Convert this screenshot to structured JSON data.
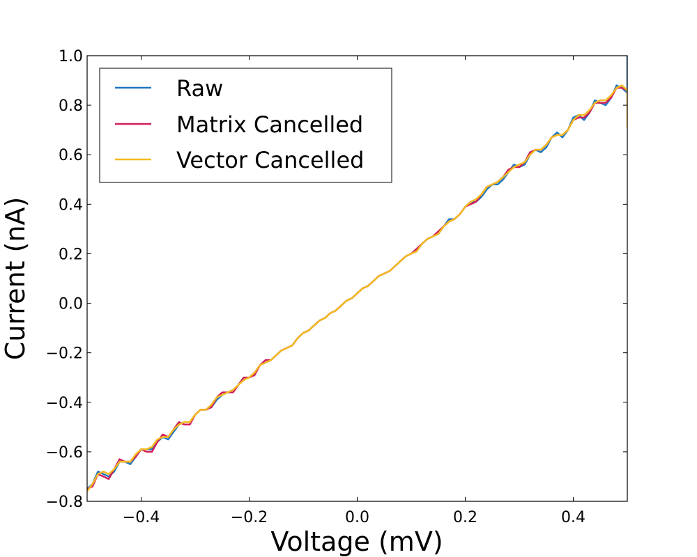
{
  "chart_data": {
    "type": "line",
    "xlabel": "Voltage (mV)",
    "ylabel": "Current (nA)",
    "xlim": [
      -0.5,
      0.5
    ],
    "ylim": [
      -0.8,
      1.0
    ],
    "x_ticks": [
      -0.4,
      -0.2,
      0.0,
      0.2,
      0.4
    ],
    "x_tick_labels": [
      "−0.4",
      "−0.2",
      "0.0",
      "0.2",
      "0.4"
    ],
    "y_ticks": [
      -0.8,
      -0.6,
      -0.4,
      -0.2,
      0.0,
      0.2,
      0.4,
      0.6,
      0.8,
      1.0
    ],
    "y_tick_labels": [
      "−0.8",
      "−0.6",
      "−0.4",
      "−0.2",
      "0.0",
      "0.2",
      "0.4",
      "0.6",
      "0.8",
      "1.0"
    ],
    "grid": false,
    "legend_position": "top-left",
    "series": [
      {
        "name": "Raw",
        "color": "#1f77c4",
        "x": [
          -0.5,
          -0.49,
          -0.48,
          -0.47,
          -0.46,
          -0.45,
          -0.44,
          -0.43,
          -0.42,
          -0.41,
          -0.4,
          -0.39,
          -0.38,
          -0.37,
          -0.36,
          -0.35,
          -0.34,
          -0.33,
          -0.32,
          -0.31,
          -0.3,
          -0.29,
          -0.28,
          -0.27,
          -0.26,
          -0.25,
          -0.24,
          -0.23,
          -0.22,
          -0.21,
          -0.2,
          -0.19,
          -0.18,
          -0.17,
          -0.16,
          -0.15,
          -0.14,
          -0.13,
          -0.12,
          -0.11,
          -0.1,
          -0.09,
          -0.08,
          -0.07,
          -0.06,
          -0.05,
          -0.04,
          -0.03,
          -0.02,
          -0.01,
          0.0,
          0.01,
          0.02,
          0.03,
          0.04,
          0.05,
          0.06,
          0.07,
          0.08,
          0.09,
          0.1,
          0.11,
          0.12,
          0.13,
          0.14,
          0.15,
          0.16,
          0.17,
          0.18,
          0.19,
          0.2,
          0.21,
          0.22,
          0.23,
          0.24,
          0.25,
          0.26,
          0.27,
          0.28,
          0.29,
          0.3,
          0.31,
          0.32,
          0.33,
          0.34,
          0.35,
          0.36,
          0.37,
          0.38,
          0.39,
          0.4,
          0.41,
          0.42,
          0.43,
          0.44,
          0.45,
          0.46,
          0.47,
          0.48,
          0.49,
          0.5,
          0.5
        ],
        "y": [
          -0.75,
          -0.73,
          -0.68,
          -0.69,
          -0.7,
          -0.68,
          -0.64,
          -0.64,
          -0.65,
          -0.62,
          -0.59,
          -0.59,
          -0.59,
          -0.56,
          -0.54,
          -0.55,
          -0.52,
          -0.49,
          -0.48,
          -0.48,
          -0.45,
          -0.43,
          -0.43,
          -0.42,
          -0.39,
          -0.37,
          -0.36,
          -0.35,
          -0.33,
          -0.3,
          -0.3,
          -0.28,
          -0.25,
          -0.24,
          -0.23,
          -0.21,
          -0.19,
          -0.18,
          -0.17,
          -0.14,
          -0.12,
          -0.11,
          -0.09,
          -0.07,
          -0.06,
          -0.04,
          -0.03,
          -0.01,
          0.01,
          0.02,
          0.04,
          0.06,
          0.07,
          0.09,
          0.11,
          0.12,
          0.13,
          0.15,
          0.17,
          0.19,
          0.2,
          0.21,
          0.24,
          0.26,
          0.27,
          0.28,
          0.31,
          0.34,
          0.34,
          0.36,
          0.39,
          0.41,
          0.41,
          0.43,
          0.46,
          0.48,
          0.48,
          0.5,
          0.53,
          0.56,
          0.55,
          0.56,
          0.6,
          0.62,
          0.61,
          0.63,
          0.67,
          0.69,
          0.67,
          0.7,
          0.75,
          0.76,
          0.74,
          0.77,
          0.82,
          0.81,
          0.8,
          0.83,
          0.88,
          0.87,
          0.85,
          1.0
        ]
      },
      {
        "name": "Matrix Cancelled",
        "color": "#d11f5c",
        "x": [
          -0.5,
          -0.49,
          -0.48,
          -0.47,
          -0.46,
          -0.45,
          -0.44,
          -0.43,
          -0.42,
          -0.41,
          -0.4,
          -0.39,
          -0.38,
          -0.37,
          -0.36,
          -0.35,
          -0.34,
          -0.33,
          -0.32,
          -0.31,
          -0.3,
          -0.29,
          -0.28,
          -0.27,
          -0.26,
          -0.25,
          -0.24,
          -0.23,
          -0.22,
          -0.21,
          -0.2,
          -0.19,
          -0.18,
          -0.17,
          -0.16,
          -0.15,
          -0.14,
          -0.13,
          -0.12,
          -0.11,
          -0.1,
          -0.09,
          -0.08,
          -0.07,
          -0.06,
          -0.05,
          -0.04,
          -0.03,
          -0.02,
          -0.01,
          0.0,
          0.01,
          0.02,
          0.03,
          0.04,
          0.05,
          0.06,
          0.07,
          0.08,
          0.09,
          0.1,
          0.11,
          0.12,
          0.13,
          0.14,
          0.15,
          0.16,
          0.17,
          0.18,
          0.19,
          0.2,
          0.21,
          0.22,
          0.23,
          0.24,
          0.25,
          0.26,
          0.27,
          0.28,
          0.29,
          0.3,
          0.31,
          0.32,
          0.33,
          0.34,
          0.35,
          0.36,
          0.37,
          0.38,
          0.39,
          0.4,
          0.41,
          0.42,
          0.43,
          0.44,
          0.45,
          0.46,
          0.47,
          0.48,
          0.49,
          0.5
        ],
        "y": [
          -0.75,
          -0.74,
          -0.69,
          -0.7,
          -0.71,
          -0.67,
          -0.63,
          -0.64,
          -0.64,
          -0.62,
          -0.59,
          -0.6,
          -0.6,
          -0.56,
          -0.53,
          -0.54,
          -0.51,
          -0.48,
          -0.49,
          -0.49,
          -0.45,
          -0.43,
          -0.43,
          -0.42,
          -0.38,
          -0.36,
          -0.36,
          -0.36,
          -0.33,
          -0.3,
          -0.3,
          -0.29,
          -0.25,
          -0.23,
          -0.23,
          -0.21,
          -0.19,
          -0.18,
          -0.17,
          -0.14,
          -0.12,
          -0.11,
          -0.09,
          -0.07,
          -0.06,
          -0.04,
          -0.03,
          -0.01,
          0.01,
          0.02,
          0.04,
          0.06,
          0.07,
          0.09,
          0.11,
          0.12,
          0.13,
          0.15,
          0.17,
          0.19,
          0.2,
          0.22,
          0.24,
          0.26,
          0.27,
          0.29,
          0.31,
          0.33,
          0.34,
          0.36,
          0.39,
          0.4,
          0.41,
          0.44,
          0.47,
          0.48,
          0.49,
          0.51,
          0.54,
          0.55,
          0.55,
          0.57,
          0.61,
          0.62,
          0.62,
          0.64,
          0.67,
          0.68,
          0.68,
          0.7,
          0.74,
          0.75,
          0.75,
          0.77,
          0.81,
          0.81,
          0.81,
          0.83,
          0.87,
          0.87,
          0.86
        ]
      },
      {
        "name": "Vector Cancelled",
        "color": "#f5bb1e",
        "x": [
          -0.5,
          -0.49,
          -0.48,
          -0.47,
          -0.46,
          -0.45,
          -0.44,
          -0.43,
          -0.42,
          -0.41,
          -0.4,
          -0.39,
          -0.38,
          -0.37,
          -0.36,
          -0.35,
          -0.34,
          -0.33,
          -0.32,
          -0.31,
          -0.3,
          -0.29,
          -0.28,
          -0.27,
          -0.26,
          -0.25,
          -0.24,
          -0.23,
          -0.22,
          -0.21,
          -0.2,
          -0.19,
          -0.18,
          -0.17,
          -0.16,
          -0.15,
          -0.14,
          -0.13,
          -0.12,
          -0.11,
          -0.1,
          -0.09,
          -0.08,
          -0.07,
          -0.06,
          -0.05,
          -0.04,
          -0.03,
          -0.02,
          -0.01,
          0.0,
          0.01,
          0.02,
          0.03,
          0.04,
          0.05,
          0.06,
          0.07,
          0.08,
          0.09,
          0.1,
          0.11,
          0.12,
          0.13,
          0.14,
          0.15,
          0.16,
          0.17,
          0.18,
          0.19,
          0.2,
          0.21,
          0.22,
          0.23,
          0.24,
          0.25,
          0.26,
          0.27,
          0.28,
          0.29,
          0.3,
          0.31,
          0.32,
          0.33,
          0.34,
          0.35,
          0.36,
          0.37,
          0.38,
          0.39,
          0.4,
          0.41,
          0.42,
          0.43,
          0.44,
          0.45,
          0.46,
          0.47,
          0.48,
          0.49,
          0.5,
          0.5
        ],
        "y": [
          -0.76,
          -0.73,
          -0.69,
          -0.68,
          -0.69,
          -0.67,
          -0.64,
          -0.64,
          -0.64,
          -0.61,
          -0.59,
          -0.59,
          -0.58,
          -0.55,
          -0.54,
          -0.54,
          -0.51,
          -0.49,
          -0.48,
          -0.48,
          -0.45,
          -0.43,
          -0.43,
          -0.41,
          -0.38,
          -0.37,
          -0.36,
          -0.35,
          -0.33,
          -0.31,
          -0.3,
          -0.28,
          -0.25,
          -0.24,
          -0.23,
          -0.21,
          -0.19,
          -0.18,
          -0.17,
          -0.14,
          -0.12,
          -0.11,
          -0.09,
          -0.07,
          -0.06,
          -0.04,
          -0.03,
          -0.01,
          0.01,
          0.02,
          0.04,
          0.06,
          0.07,
          0.09,
          0.11,
          0.12,
          0.13,
          0.15,
          0.17,
          0.19,
          0.2,
          0.21,
          0.24,
          0.26,
          0.27,
          0.28,
          0.31,
          0.33,
          0.34,
          0.36,
          0.39,
          0.41,
          0.42,
          0.44,
          0.47,
          0.48,
          0.49,
          0.51,
          0.53,
          0.55,
          0.56,
          0.57,
          0.6,
          0.62,
          0.62,
          0.64,
          0.67,
          0.68,
          0.68,
          0.7,
          0.74,
          0.76,
          0.76,
          0.78,
          0.81,
          0.82,
          0.82,
          0.84,
          0.87,
          0.88,
          0.86,
          0.71
        ]
      }
    ]
  }
}
